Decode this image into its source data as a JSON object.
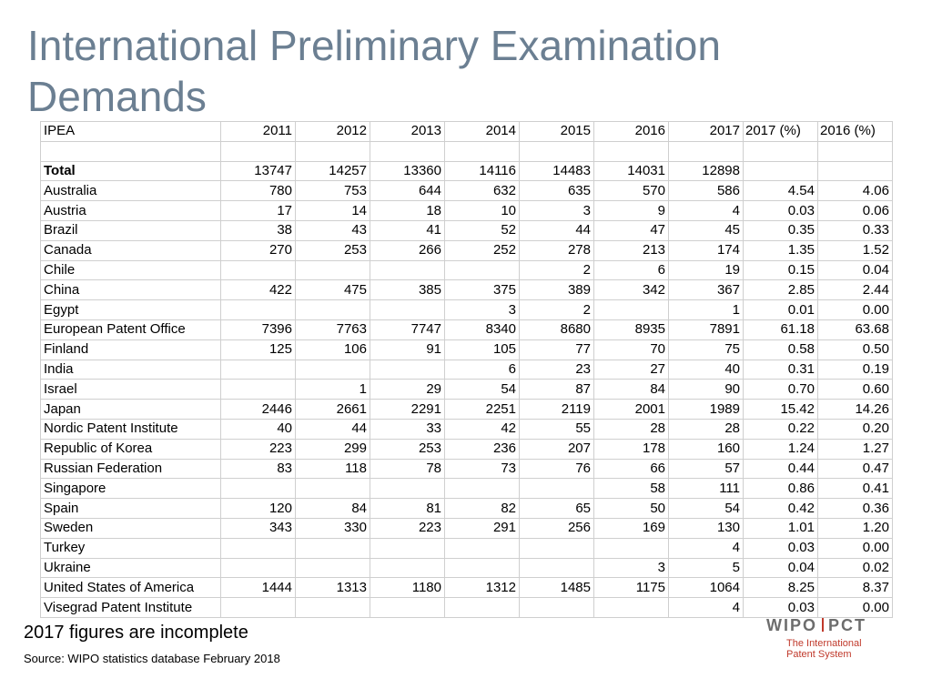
{
  "title": "International Preliminary Examination Demands",
  "table": {
    "columns": [
      "IPEA",
      "2011",
      "2012",
      "2013",
      "2014",
      "2015",
      "2016",
      "2017",
      "2017 (%)",
      "2016 (%)"
    ],
    "total": {
      "label": "Total",
      "values": [
        "13747",
        "14257",
        "13360",
        "14116",
        "14483",
        "14031",
        "12898",
        "",
        ""
      ]
    },
    "rows": [
      {
        "name": "Australia",
        "values": [
          "780",
          "753",
          "644",
          "632",
          "635",
          "570",
          "586",
          "4.54",
          "4.06"
        ]
      },
      {
        "name": "Austria",
        "values": [
          "17",
          "14",
          "18",
          "10",
          "3",
          "9",
          "4",
          "0.03",
          "0.06"
        ]
      },
      {
        "name": "Brazil",
        "values": [
          "38",
          "43",
          "41",
          "52",
          "44",
          "47",
          "45",
          "0.35",
          "0.33"
        ]
      },
      {
        "name": "Canada",
        "values": [
          "270",
          "253",
          "266",
          "252",
          "278",
          "213",
          "174",
          "1.35",
          "1.52"
        ]
      },
      {
        "name": "Chile",
        "values": [
          "",
          "",
          "",
          "",
          "2",
          "6",
          "19",
          "0.15",
          "0.04"
        ]
      },
      {
        "name": "China",
        "values": [
          "422",
          "475",
          "385",
          "375",
          "389",
          "342",
          "367",
          "2.85",
          "2.44"
        ]
      },
      {
        "name": "Egypt",
        "values": [
          "",
          "",
          "",
          "3",
          "2",
          "",
          "1",
          "0.01",
          "0.00"
        ]
      },
      {
        "name": "European Patent Office",
        "values": [
          "7396",
          "7763",
          "7747",
          "8340",
          "8680",
          "8935",
          "7891",
          "61.18",
          "63.68"
        ]
      },
      {
        "name": "Finland",
        "values": [
          "125",
          "106",
          "91",
          "105",
          "77",
          "70",
          "75",
          "0.58",
          "0.50"
        ]
      },
      {
        "name": "India",
        "values": [
          "",
          "",
          "",
          "6",
          "23",
          "27",
          "40",
          "0.31",
          "0.19"
        ]
      },
      {
        "name": "Israel",
        "values": [
          "",
          "1",
          "29",
          "54",
          "87",
          "84",
          "90",
          "0.70",
          "0.60"
        ]
      },
      {
        "name": "Japan",
        "values": [
          "2446",
          "2661",
          "2291",
          "2251",
          "2119",
          "2001",
          "1989",
          "15.42",
          "14.26"
        ]
      },
      {
        "name": "Nordic Patent Institute",
        "values": [
          "40",
          "44",
          "33",
          "42",
          "55",
          "28",
          "28",
          "0.22",
          "0.20"
        ]
      },
      {
        "name": "Republic of Korea",
        "values": [
          "223",
          "299",
          "253",
          "236",
          "207",
          "178",
          "160",
          "1.24",
          "1.27"
        ]
      },
      {
        "name": "Russian Federation",
        "values": [
          "83",
          "118",
          "78",
          "73",
          "76",
          "66",
          "57",
          "0.44",
          "0.47"
        ]
      },
      {
        "name": "Singapore",
        "values": [
          "",
          "",
          "",
          "",
          "",
          "58",
          "111",
          "0.86",
          "0.41"
        ]
      },
      {
        "name": "Spain",
        "values": [
          "120",
          "84",
          "81",
          "82",
          "65",
          "50",
          "54",
          "0.42",
          "0.36"
        ]
      },
      {
        "name": "Sweden",
        "values": [
          "343",
          "330",
          "223",
          "291",
          "256",
          "169",
          "130",
          "1.01",
          "1.20"
        ]
      },
      {
        "name": "Turkey",
        "values": [
          "",
          "",
          "",
          "",
          "",
          "",
          "4",
          "0.03",
          "0.00"
        ]
      },
      {
        "name": "Ukraine",
        "values": [
          "",
          "",
          "",
          "",
          "",
          "3",
          "5",
          "0.04",
          "0.02"
        ]
      },
      {
        "name": "United States of America",
        "values": [
          "1444",
          "1313",
          "1180",
          "1312",
          "1485",
          "1175",
          "1064",
          "8.25",
          "8.37"
        ]
      },
      {
        "name": "Visegrad Patent Institute",
        "values": [
          "",
          "",
          "",
          "",
          "",
          "",
          "4",
          "0.03",
          "0.00"
        ]
      }
    ]
  },
  "footnote": "2017 figures are incomplete",
  "source": "Source: WIPO statistics database  February 2018",
  "logo": {
    "left": "WIPO",
    "right": "PCT",
    "tagline_1": "The International",
    "tagline_2": "Patent System"
  },
  "colors": {
    "title": "#6b7f92",
    "logo_grey": "#6d6d6d",
    "logo_red": "#c0392b",
    "grid": "#cfcfcf"
  }
}
